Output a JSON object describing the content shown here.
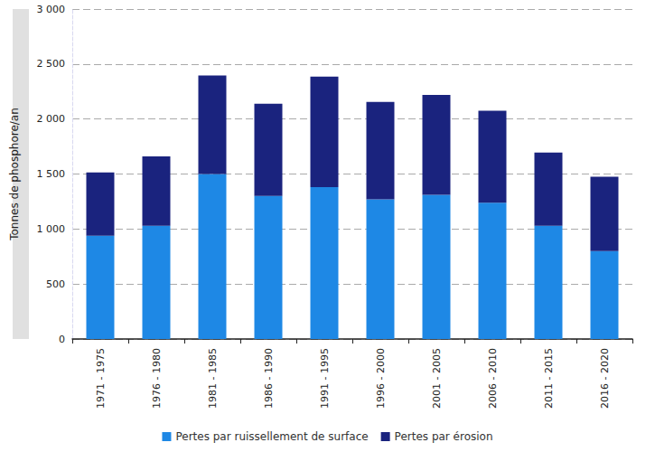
{
  "chart_data": {
    "type": "bar",
    "stacked": true,
    "grid": true,
    "legend": "bottom",
    "y_label": "Tonnes de phosphore/an",
    "categories": [
      "1971 - 1975",
      "1976 - 1980",
      "1981 - 1985",
      "1986 - 1990",
      "1991 - 1995",
      "1996 - 2000",
      "2001 - 2005",
      "2006 - 2010",
      "2011 - 2015",
      "2016 - 2020"
    ],
    "series": [
      {
        "name": "Pertes par ruissellement de surface",
        "color": "#1e88e5",
        "values": [
          940,
          1030,
          1500,
          1300,
          1380,
          1270,
          1310,
          1240,
          1030,
          800
        ]
      },
      {
        "name": "Pertes par érosion",
        "color": "#1a237e",
        "values": [
          575,
          630,
          895,
          840,
          1005,
          885,
          910,
          835,
          665,
          675
        ]
      }
    ],
    "ylim": [
      0,
      3000
    ],
    "yticks": [
      0,
      500,
      {
        "value": 1000,
        "label": "1 000"
      },
      {
        "value": 1500,
        "label": "1 500"
      },
      {
        "value": 2000,
        "label": "2 000"
      },
      {
        "value": 2500,
        "label": "2 500"
      },
      {
        "value": 3000,
        "label": "3 000"
      }
    ]
  }
}
